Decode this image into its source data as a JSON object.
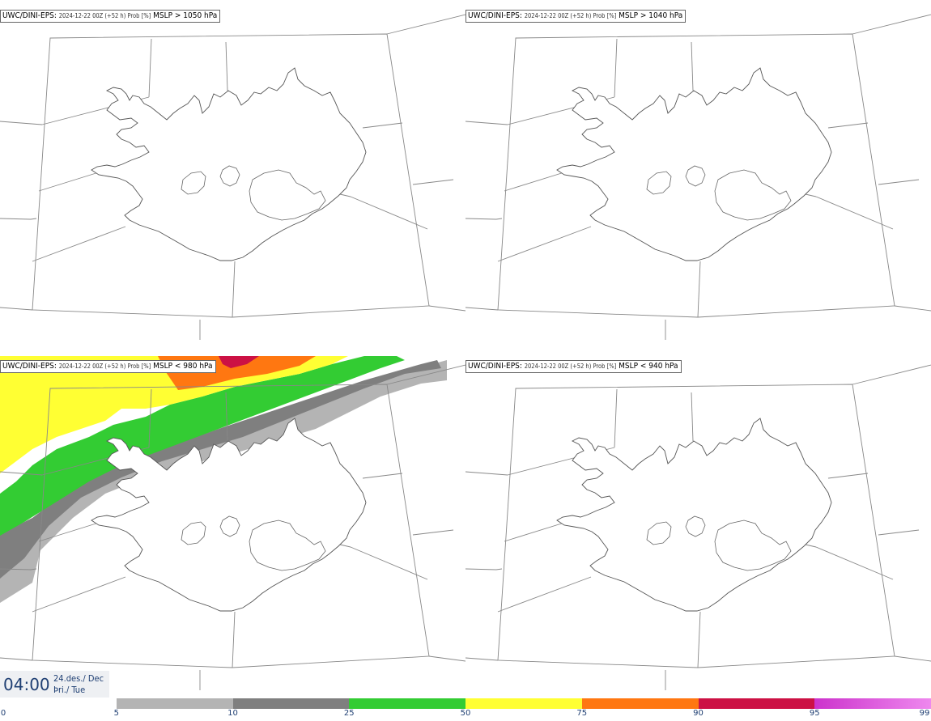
{
  "panels": [
    {
      "model": "UWC/DINI-EPS",
      "run": "2024-12-22 00Z (+52 h) Prob [%]",
      "field": "MSLP > 1050 hPa",
      "probability_field": "none"
    },
    {
      "model": "UWC/DINI-EPS",
      "run": "2024-12-22 00Z (+52 h) Prob [%]",
      "field": "MSLP > 1040 hPa",
      "probability_field": "none"
    },
    {
      "model": "UWC/DINI-EPS",
      "run": "2024-12-22 00Z (+52 h) Prob [%]",
      "field": "MSLP < 980 hPa",
      "probability_field": "northwest-band"
    },
    {
      "model": "UWC/DINI-EPS",
      "run": "2024-12-22 00Z (+52 h) Prob [%]",
      "field": "MSLP < 940 hPa",
      "probability_field": "none"
    }
  ],
  "valid_time": {
    "time": "04:00",
    "date_line": "24.des./ Dec",
    "day_line": "Þri./ Tue"
  },
  "legend": {
    "ticks": [
      "0",
      "5",
      "10",
      "25",
      "50",
      "75",
      "90",
      "95",
      "99"
    ],
    "bins": [
      {
        "from": 5,
        "to": 10,
        "color": "#b4b4b4"
      },
      {
        "from": 10,
        "to": 25,
        "color": "#7f7f7f"
      },
      {
        "from": 25,
        "to": 50,
        "color": "#33cc33"
      },
      {
        "from": 50,
        "to": 75,
        "color": "#ffff33"
      },
      {
        "from": 75,
        "to": 90,
        "color": "#ff7711"
      },
      {
        "from": 90,
        "to": 95,
        "color": "#cc1144"
      },
      {
        "from": 95,
        "to": 99,
        "color": "#cc33cc"
      }
    ],
    "top_color": "#ee88ee"
  }
}
